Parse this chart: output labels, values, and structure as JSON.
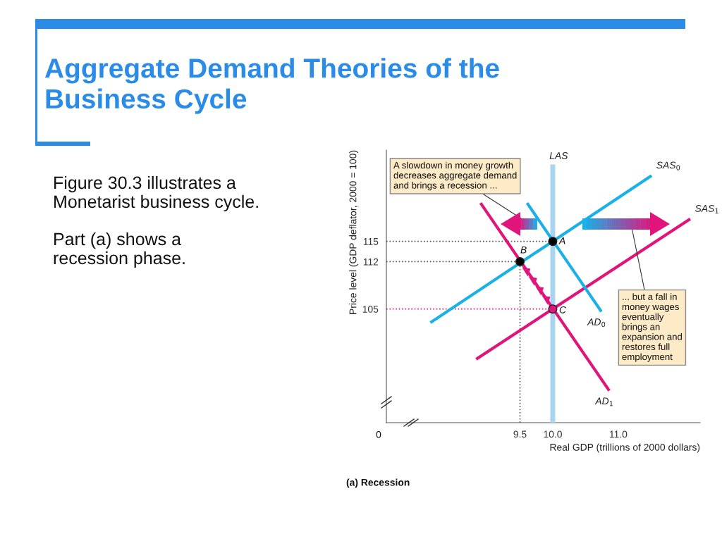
{
  "chart_data": {
    "type": "line",
    "title": "Aggregate Demand Theories of the\nBusiness Cycle",
    "xlabel": "Real GDP (trillions of 2000 dollars)",
    "ylabel": "Price level (GDP deflator, 2000 = 100)",
    "xlim": [
      7.46,
      12.25
    ],
    "ylim": [
      88.2,
      128.5
    ],
    "xticks": [
      9.5,
      {
        "value": 10,
        "label": "10.0"
      },
      {
        "value": 11,
        "label": "11.0"
      }
    ],
    "yticks": [
      105,
      112,
      115
    ],
    "grid": false,
    "legend": false,
    "line_style": "solid",
    "marker": "none",
    "series": [
      {
        "name": "LAS",
        "color": "#a8d4f0",
        "x": [
          10,
          10
        ],
        "values": [
          88.2,
          126
        ]
      },
      {
        "name": "SAS$_{0}$",
        "color": "#1ab0e8",
        "x": [
          8.15,
          11.49
        ],
        "values": [
          103.1,
          124.6
        ]
      },
      {
        "name": "SAS$_{1}$",
        "color": "#e0147a",
        "x": [
          8.85,
          12.08
        ],
        "values": [
          97.7,
          118.2
        ]
      },
      {
        "name": "AD$_{0}$",
        "color": "#1ab0e8",
        "x": [
          9.62,
          10.73
        ],
        "values": [
          120.5,
          104.8
        ]
      },
      {
        "name": "AD$_{1}$",
        "color": "#e0147a",
        "x": [
          8.91,
          10.85
        ],
        "values": [
          120.5,
          93.1
        ]
      },
      {
        "color": "#555555",
        "line_style": "dotted",
        "x": [
          7.46,
          10
        ],
        "values": [
          115,
          115
        ]
      },
      {
        "color": "#555555",
        "line_style": "dotted",
        "x": [
          7.46,
          9.5
        ],
        "values": [
          112,
          112
        ]
      },
      {
        "color": "#e0147a",
        "line_style": "dotted",
        "x": [
          7.46,
          10
        ],
        "values": [
          105,
          105
        ]
      },
      {
        "color": "#555555",
        "line_style": "dotted",
        "x": [
          9.5,
          9.5
        ],
        "values": [
          88.2,
          112
        ]
      },
      {
        "type": "scatter",
        "marker": "circle",
        "x": [
          9.5,
          10,
          10
        ],
        "values": [
          112,
          115,
          105
        ],
        "colors": [
          "#000000",
          "#000000",
          "#e0147a"
        ]
      }
    ],
    "annotations": [
      "Figure 30.3 illustrates a\nMonetarist business cycle.",
      "Part (a) shows a\nrecession phase.",
      "A slowdown in money growth\ndecreases aggregate demand\nand brings a recession ...",
      "... but a fall in\nmoney wages\neventually\nbrings an\nexpansion and\nrestores full\nemployment",
      "(a) Recession",
      "0",
      "B",
      "A",
      "C"
    ]
  }
}
